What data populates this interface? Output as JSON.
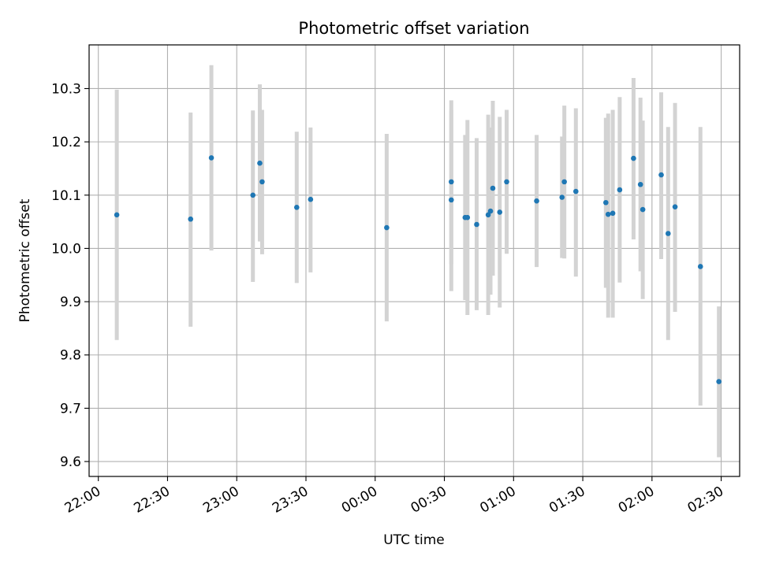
{
  "chart_data": {
    "type": "scatter",
    "title": "Photometric offset variation",
    "xlabel": "UTC time",
    "ylabel": "Photometric offset",
    "grid": true,
    "xlim": [
      "21:56",
      "02:38"
    ],
    "ylim": [
      9.572,
      10.382
    ],
    "x_ticks": [
      "22:00",
      "22:30",
      "23:00",
      "23:30",
      "00:00",
      "00:30",
      "01:00",
      "01:30",
      "02:00",
      "02:30"
    ],
    "y_ticks": [
      "9.6",
      "9.7",
      "9.8",
      "9.9",
      "10.0",
      "10.1",
      "10.2",
      "10.3"
    ],
    "colors": {
      "points": "#1f77b4",
      "error_bars": "#d3d3d3",
      "grid": "#b0b0b0"
    },
    "series": [
      {
        "points": [
          {
            "x": "22:08",
            "y": 10.063,
            "ylo": 9.828,
            "yhi": 10.298
          },
          {
            "x": "22:40",
            "y": 10.055,
            "ylo": 9.853,
            "yhi": 10.255
          },
          {
            "x": "22:49",
            "y": 10.17,
            "ylo": 9.996,
            "yhi": 10.344
          },
          {
            "x": "23:07",
            "y": 10.1,
            "ylo": 9.937,
            "yhi": 10.259
          },
          {
            "x": "23:10",
            "y": 10.16,
            "ylo": 10.013,
            "yhi": 10.308
          },
          {
            "x": "23:11",
            "y": 10.125,
            "ylo": 9.989,
            "yhi": 10.26
          },
          {
            "x": "23:26",
            "y": 10.077,
            "ylo": 9.935,
            "yhi": 10.219
          },
          {
            "x": "23:32",
            "y": 10.092,
            "ylo": 9.955,
            "yhi": 10.227
          },
          {
            "x": "00:05",
            "y": 10.039,
            "ylo": 9.863,
            "yhi": 10.215
          },
          {
            "x": "00:33",
            "y": 10.091,
            "ylo": 9.92,
            "yhi": 10.26
          },
          {
            "x": "00:33",
            "y": 10.125,
            "ylo": 9.97,
            "yhi": 10.278
          },
          {
            "x": "00:39",
            "y": 10.058,
            "ylo": 9.903,
            "yhi": 10.213
          },
          {
            "x": "00:40",
            "y": 10.058,
            "ylo": 9.875,
            "yhi": 10.241
          },
          {
            "x": "00:44",
            "y": 10.045,
            "ylo": 9.884,
            "yhi": 10.207
          },
          {
            "x": "00:49",
            "y": 10.063,
            "ylo": 9.875,
            "yhi": 10.251
          },
          {
            "x": "00:50",
            "y": 10.07,
            "ylo": 9.913,
            "yhi": 10.227
          },
          {
            "x": "00:51",
            "y": 10.113,
            "ylo": 9.949,
            "yhi": 10.277
          },
          {
            "x": "00:54",
            "y": 10.068,
            "ylo": 9.889,
            "yhi": 10.247
          },
          {
            "x": "00:57",
            "y": 10.125,
            "ylo": 9.99,
            "yhi": 10.26
          },
          {
            "x": "01:10",
            "y": 10.089,
            "ylo": 9.965,
            "yhi": 10.213
          },
          {
            "x": "01:21",
            "y": 10.096,
            "ylo": 9.982,
            "yhi": 10.21
          },
          {
            "x": "01:22",
            "y": 10.125,
            "ylo": 9.981,
            "yhi": 10.268
          },
          {
            "x": "01:27",
            "y": 10.107,
            "ylo": 9.947,
            "yhi": 10.263
          },
          {
            "x": "01:40",
            "y": 10.086,
            "ylo": 9.926,
            "yhi": 10.245
          },
          {
            "x": "01:41",
            "y": 10.064,
            "ylo": 9.87,
            "yhi": 10.253
          },
          {
            "x": "01:43",
            "y": 10.066,
            "ylo": 9.87,
            "yhi": 10.26
          },
          {
            "x": "01:46",
            "y": 10.11,
            "ylo": 9.936,
            "yhi": 10.284
          },
          {
            "x": "01:52",
            "y": 10.169,
            "ylo": 10.017,
            "yhi": 10.32
          },
          {
            "x": "01:55",
            "y": 10.12,
            "ylo": 9.957,
            "yhi": 10.283
          },
          {
            "x": "01:56",
            "y": 10.073,
            "ylo": 9.905,
            "yhi": 10.24
          },
          {
            "x": "02:04",
            "y": 10.138,
            "ylo": 9.98,
            "yhi": 10.293
          },
          {
            "x": "02:07",
            "y": 10.028,
            "ylo": 9.828,
            "yhi": 10.228
          },
          {
            "x": "02:10",
            "y": 10.078,
            "ylo": 9.881,
            "yhi": 10.273
          },
          {
            "x": "02:21",
            "y": 9.966,
            "ylo": 9.705,
            "yhi": 10.228
          },
          {
            "x": "02:29",
            "y": 9.75,
            "ylo": 9.608,
            "yhi": 9.891
          }
        ]
      }
    ]
  }
}
